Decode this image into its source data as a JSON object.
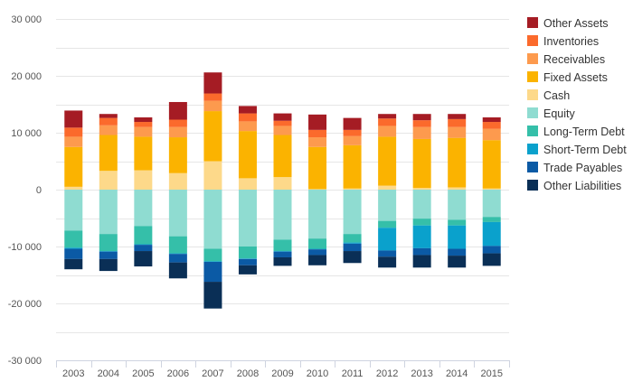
{
  "chart_data": {
    "type": "bar",
    "stacked": true,
    "categories": [
      "2003",
      "2004",
      "2005",
      "2006",
      "2007",
      "2008",
      "2009",
      "2010",
      "2011",
      "2012",
      "2013",
      "2014",
      "2015"
    ],
    "ylim": [
      -30000,
      30000
    ],
    "yticks": [
      {
        "value": 30000,
        "label": "30 000"
      },
      {
        "value": 20000,
        "label": "20 000"
      },
      {
        "value": 10000,
        "label": "10 000"
      },
      {
        "value": 0,
        "label": "0"
      },
      {
        "value": -10000,
        "label": "-10 000"
      },
      {
        "value": -20000,
        "label": "-20 000"
      },
      {
        "value": -30000,
        "label": "-30 000"
      }
    ],
    "grid": true,
    "legend_position": "right",
    "series": [
      {
        "name": "Cash",
        "color": "#fdd98a",
        "values": [
          500,
          3300,
          3400,
          2900,
          5000,
          2000,
          2200,
          100,
          200,
          700,
          300,
          400,
          200
        ]
      },
      {
        "name": "Fixed Assets",
        "color": "#fbb300",
        "values": [
          7000,
          6300,
          5900,
          6300,
          8800,
          8300,
          7400,
          7400,
          7600,
          8600,
          8600,
          8700,
          8500
        ]
      },
      {
        "name": "Receivables",
        "color": "#fd9a4e",
        "values": [
          1800,
          1700,
          1700,
          1800,
          1800,
          1700,
          1600,
          1700,
          1600,
          1900,
          2100,
          1900,
          2000
        ]
      },
      {
        "name": "Inventories",
        "color": "#fb6a2c",
        "values": [
          1600,
          1300,
          900,
          1300,
          1300,
          1400,
          900,
          1300,
          1100,
          1300,
          1200,
          1400,
          1200
        ]
      },
      {
        "name": "Other Assets",
        "color": "#a51c24",
        "values": [
          3000,
          700,
          800,
          3100,
          3700,
          1300,
          1300,
          2700,
          2100,
          800,
          1100,
          900,
          800
        ]
      },
      {
        "name": "Equity",
        "color": "#8fdcd1",
        "values": [
          -7200,
          -7800,
          -6400,
          -8200,
          -10400,
          -10000,
          -8800,
          -8600,
          -7800,
          -5500,
          -5100,
          -5300,
          -4800
        ]
      },
      {
        "name": "Long-Term Debt",
        "color": "#35bfa9",
        "values": [
          -3000,
          -3000,
          -3200,
          -3000,
          -2200,
          -2100,
          -2000,
          -1800,
          -1500,
          -1200,
          -1200,
          -1000,
          -900
        ]
      },
      {
        "name": "Short-Term Debt",
        "color": "#0aa1cc",
        "values": [
          -200,
          -100,
          -100,
          -100,
          -100,
          -100,
          -100,
          -100,
          -200,
          -4000,
          -4000,
          -4100,
          -4200
        ]
      },
      {
        "name": "Trade Payables",
        "color": "#0b5aa5",
        "values": [
          -1800,
          -1300,
          -1100,
          -1500,
          -3500,
          -1100,
          -1000,
          -1000,
          -1300,
          -1100,
          -1200,
          -1200,
          -1300
        ]
      },
      {
        "name": "Other Liabilities",
        "color": "#0a2f56",
        "values": [
          -1800,
          -2100,
          -2700,
          -2800,
          -4700,
          -1600,
          -1500,
          -1800,
          -2100,
          -1900,
          -2200,
          -2100,
          -2200
        ]
      }
    ],
    "legend_order": [
      "Other Assets",
      "Inventories",
      "Receivables",
      "Fixed Assets",
      "Cash",
      "Equity",
      "Long-Term Debt",
      "Short-Term Debt",
      "Trade Payables",
      "Other Liabilities"
    ]
  },
  "colors": {
    "grid": "#e6e6e6",
    "axis": "#cfd4e0",
    "tick_text": "#555555"
  }
}
